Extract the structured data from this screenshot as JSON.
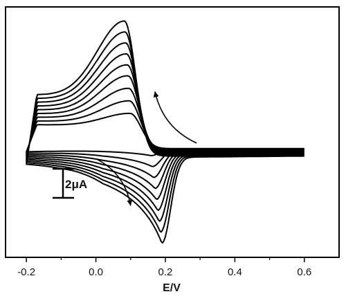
{
  "chart_data": {
    "type": "line",
    "title": "",
    "xlabel": "E/V",
    "ylabel": "",
    "xlim": [
      -0.26,
      0.7
    ],
    "x_ticks": [
      -0.2,
      0.0,
      0.2,
      0.4,
      0.6
    ],
    "x_tick_labels": [
      "-0.2",
      "0.0",
      "0.2",
      "0.4",
      "0.6"
    ],
    "ylim": [
      -8.5,
      7.5
    ],
    "y_ticks_visible": false,
    "grid": false,
    "legend": "none",
    "scale_bar": {
      "label": "2μA",
      "value": 2
    },
    "scan_range": [
      -0.2,
      0.6
    ],
    "series": [
      {
        "anodic_peak": {
          "x": 0.098,
          "y": 0.7
        },
        "cathodic_peak": {
          "x": 0.158,
          "y": -2.0
        },
        "start_current": -0.02,
        "end_current": -1.55,
        "switch_current": -1.75
      },
      {
        "anodic_peak": {
          "x": 0.096,
          "y": 1.5
        },
        "cathodic_peak": {
          "x": 0.162,
          "y": -2.7
        },
        "start_current": 0.22,
        "end_current": -1.61,
        "switch_current": -1.85
      },
      {
        "anodic_peak": {
          "x": 0.094,
          "y": 2.3
        },
        "cathodic_peak": {
          "x": 0.166,
          "y": -3.4
        },
        "start_current": 0.46,
        "end_current": -1.67,
        "switch_current": -1.95
      },
      {
        "anodic_peak": {
          "x": 0.092,
          "y": 3.1
        },
        "cathodic_peak": {
          "x": 0.17,
          "y": -4.1
        },
        "start_current": 0.7,
        "end_current": -1.73,
        "switch_current": -2.05
      },
      {
        "anodic_peak": {
          "x": 0.09,
          "y": 3.8
        },
        "cathodic_peak": {
          "x": 0.174,
          "y": -4.8
        },
        "start_current": 0.94,
        "end_current": -1.79,
        "switch_current": -2.15
      },
      {
        "anodic_peak": {
          "x": 0.088,
          "y": 4.5
        },
        "cathodic_peak": {
          "x": 0.178,
          "y": -5.5
        },
        "start_current": 1.18,
        "end_current": -1.85,
        "switch_current": -2.25
      },
      {
        "anodic_peak": {
          "x": 0.086,
          "y": 5.2
        },
        "cathodic_peak": {
          "x": 0.182,
          "y": -6.2
        },
        "start_current": 1.42,
        "end_current": -1.91,
        "switch_current": -2.35
      },
      {
        "anodic_peak": {
          "x": 0.084,
          "y": 5.9
        },
        "cathodic_peak": {
          "x": 0.186,
          "y": -6.9
        },
        "start_current": 1.66,
        "end_current": -1.97,
        "switch_current": -2.45
      },
      {
        "anodic_peak": {
          "x": 0.082,
          "y": 6.6
        },
        "cathodic_peak": {
          "x": 0.19,
          "y": -7.6
        },
        "start_current": 1.9,
        "end_current": -2.03,
        "switch_current": -2.55
      }
    ],
    "annotations": [
      {
        "type": "arrow",
        "direction": "anodic-return",
        "from": {
          "x": 0.29,
          "y": -1.2
        },
        "to": {
          "x": 0.17,
          "y": 2.1
        }
      },
      {
        "type": "arrow",
        "direction": "cathodic-sweep",
        "from": {
          "x": 0.0,
          "y": -2.2
        },
        "to": {
          "x": 0.1,
          "y": -5.2
        }
      }
    ]
  }
}
